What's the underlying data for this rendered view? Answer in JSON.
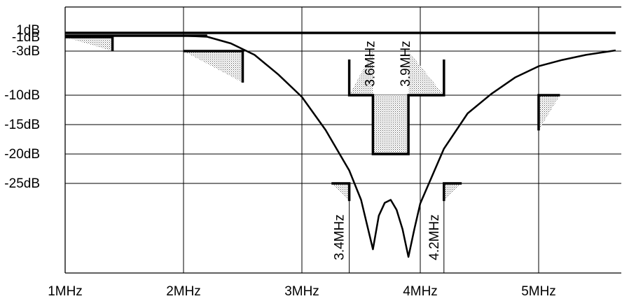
{
  "chart_data": {
    "type": "line",
    "title": "",
    "xlabel": "",
    "ylabel": "",
    "x_unit": "MHz",
    "xlim": [
      1,
      5.65
    ],
    "x_ticks": [
      {
        "value": 1,
        "label": "1MHz"
      },
      {
        "value": 2,
        "label": "2MHz"
      },
      {
        "value": 3,
        "label": "3MHz"
      },
      {
        "value": 4,
        "label": "4MHz"
      },
      {
        "value": 5,
        "label": "5MHz"
      }
    ],
    "y_ticks": [
      {
        "value": 1,
        "label": "1dB"
      },
      {
        "value": -1,
        "label": "-1dB"
      },
      {
        "value": -3,
        "label": "-3dB"
      },
      {
        "value": -10,
        "label": "-10dB"
      },
      {
        "value": -15,
        "label": "-15dB"
      },
      {
        "value": -20,
        "label": "-20dB"
      },
      {
        "value": -25,
        "label": "-25dB"
      }
    ],
    "grid": true,
    "series": [
      {
        "line": "upper-limit",
        "x": [
          1,
          5.65
        ],
        "y": [
          0.2,
          0.2
        ]
      },
      {
        "line": "lower-limit",
        "x": [
          1,
          2.0,
          2.2
        ],
        "y": [
          -0.6,
          -0.6,
          -0.6
        ]
      },
      {
        "line": "response",
        "x": [
          2.0,
          2.2,
          2.4,
          2.6,
          2.8,
          3.0,
          3.2,
          3.4,
          3.5,
          3.6,
          3.65,
          3.7,
          3.75,
          3.8,
          3.85,
          3.9,
          3.95,
          4.0,
          4.2,
          4.4,
          4.6,
          4.8,
          5.0,
          5.2,
          5.4,
          5.65
        ],
        "y": [
          -0.6,
          -0.9,
          -1.9,
          -3.6,
          -6.7,
          -10.3,
          -15.9,
          -22.8,
          -27.8,
          -36.2,
          -30.5,
          -28.3,
          -27.8,
          -29.5,
          -32.8,
          -37.5,
          -32.8,
          -28.4,
          -19.1,
          -13.1,
          -9.8,
          -7.2,
          -5.4,
          -4.4,
          -3.6,
          -2.9
        ]
      }
    ],
    "mask": [
      {
        "x": [
          1.0,
          1.4
        ],
        "y": -1,
        "drop_to": -3
      },
      {
        "x": [
          2.0,
          2.5
        ],
        "y": -3,
        "drop_to": -8
      },
      {
        "x": [
          3.4,
          3.6
        ],
        "y": -10,
        "rise_to": -3
      },
      {
        "x": [
          3.6,
          3.9
        ],
        "y": -20
      },
      {
        "x": [
          3.9,
          4.2
        ],
        "y": -10,
        "rise_to": -3
      },
      {
        "x": [
          3.25,
          3.4
        ],
        "y": -25,
        "drop_to": -28
      },
      {
        "x": [
          4.2,
          4.35
        ],
        "y": -25,
        "drop_to": -28
      },
      {
        "x": [
          5.0,
          5.18
        ],
        "y": -10,
        "drop_to": -16
      }
    ],
    "annotations": [
      {
        "label": "3.6MHz",
        "x": 3.6
      },
      {
        "label": "3.9MHz",
        "x": 3.9
      },
      {
        "label": "3.4MHz",
        "x": 3.4
      },
      {
        "label": "4.2MHz",
        "x": 4.2
      }
    ]
  }
}
